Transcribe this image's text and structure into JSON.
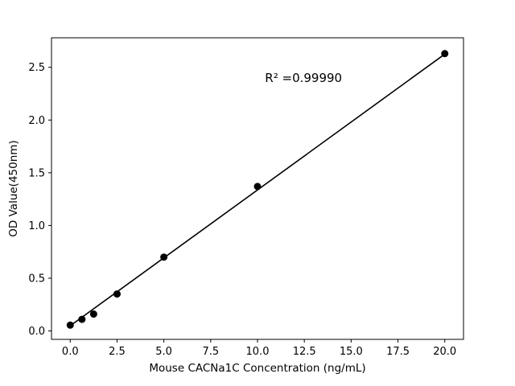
{
  "figure": {
    "background": "#ffffff",
    "axis_color": "#000000"
  },
  "chart_data": {
    "type": "scatter",
    "title": "",
    "xlabel": "Mouse CACNa1C Concentration (ng/mL)",
    "ylabel": "OD Value(450nm)",
    "x": [
      0,
      0.625,
      1.25,
      2.5,
      5,
      10,
      20
    ],
    "y": [
      0.055,
      0.11,
      0.16,
      0.35,
      0.7,
      1.37,
      2.63
    ],
    "fit_line": {
      "x": [
        0,
        20
      ],
      "y": [
        0.049,
        2.625
      ]
    },
    "annotation": {
      "text": "R² =0.99990",
      "x": 10.4,
      "y": 2.36
    },
    "xlim": [
      -1,
      21
    ],
    "ylim": [
      -0.08,
      2.78
    ],
    "xticks": [
      0.0,
      2.5,
      5.0,
      7.5,
      10.0,
      12.5,
      15.0,
      17.5,
      20.0
    ],
    "xtick_labels": [
      "0.0",
      "2.5",
      "5.0",
      "7.5",
      "10.0",
      "12.5",
      "15.0",
      "17.5",
      "20.0"
    ],
    "yticks": [
      0.0,
      0.5,
      1.0,
      1.5,
      2.0,
      2.5
    ],
    "ytick_labels": [
      "0.0",
      "0.5",
      "1.0",
      "1.5",
      "2.0",
      "2.5"
    ],
    "marker_color": "#000000",
    "line_color": "#000000",
    "grid": false,
    "legend": null
  }
}
